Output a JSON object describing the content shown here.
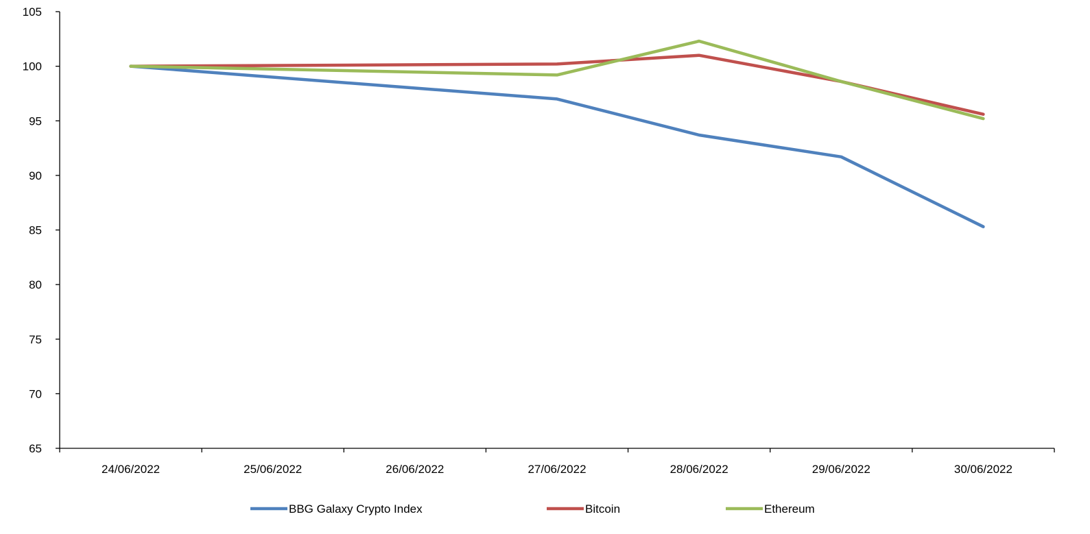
{
  "chart_data": {
    "type": "line",
    "title": "",
    "xlabel": "",
    "ylabel": "",
    "categories": [
      "24/06/2022",
      "25/06/2022",
      "26/06/2022",
      "27/06/2022",
      "28/06/2022",
      "29/06/2022",
      "30/06/2022"
    ],
    "ylim": [
      65,
      105
    ],
    "yticks": [
      "65",
      "70",
      "75",
      "80",
      "85",
      "90",
      "95",
      "100",
      "105"
    ],
    "grid": false,
    "legend_position": "bottom",
    "series": [
      {
        "name": "BBG Galaxy Crypto Index",
        "color": "#4F81BD",
        "values": [
          100,
          null,
          null,
          97.0,
          93.7,
          91.7,
          85.3
        ]
      },
      {
        "name": "Bitcoin",
        "color": "#C0504D",
        "values": [
          100,
          null,
          null,
          100.2,
          101.0,
          98.6,
          95.6
        ]
      },
      {
        "name": "Ethereum",
        "color": "#9BBB59",
        "values": [
          100,
          null,
          null,
          99.2,
          102.3,
          98.6,
          95.2
        ]
      }
    ]
  }
}
